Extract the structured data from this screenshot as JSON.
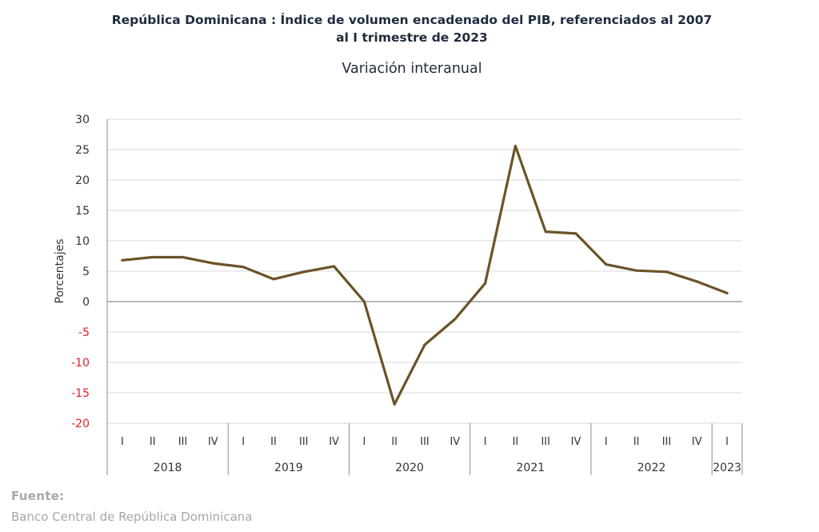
{
  "chart_data": {
    "type": "line",
    "title": "República Dominicana : Índice de volumen encadenado del PIB, referenciados al 2007",
    "title_line2": "al I trimestre de 2023",
    "subtitle": "Variación interanual",
    "ylabel": "Porcentajes",
    "xlabel": "",
    "ylim": [
      -20,
      30
    ],
    "yticks": [
      30,
      25,
      20,
      15,
      10,
      5,
      0,
      -5,
      -10,
      -15,
      -20
    ],
    "ytick_labels": [
      "30",
      "25",
      "20",
      "15",
      "10",
      "5",
      "0",
      "-5",
      "-10",
      "-15",
      "-20"
    ],
    "negative_tick_color": "#e31e24",
    "line_color": "#6b5328",
    "grid": true,
    "legend": "none",
    "quarters": [
      "I",
      "II",
      "III",
      "IV",
      "I",
      "II",
      "III",
      "IV",
      "I",
      "II",
      "III",
      "IV",
      "I",
      "II",
      "III",
      "IV",
      "I",
      "II",
      "III",
      "IV",
      "I"
    ],
    "years": [
      {
        "label": "2018",
        "count": 4
      },
      {
        "label": "2019",
        "count": 4
      },
      {
        "label": "2020",
        "count": 4
      },
      {
        "label": "2021",
        "count": 4
      },
      {
        "label": "2022",
        "count": 4
      },
      {
        "label": "2023",
        "count": 1
      }
    ],
    "values": [
      6.8,
      7.3,
      7.3,
      6.3,
      5.7,
      3.7,
      4.9,
      5.8,
      0.0,
      -16.9,
      -7.1,
      -2.9,
      3.0,
      25.6,
      11.5,
      11.2,
      6.1,
      5.1,
      4.9,
      3.3,
      1.4
    ]
  },
  "source": {
    "label": "Fuente:",
    "text": "Banco Central de República Dominicana"
  }
}
